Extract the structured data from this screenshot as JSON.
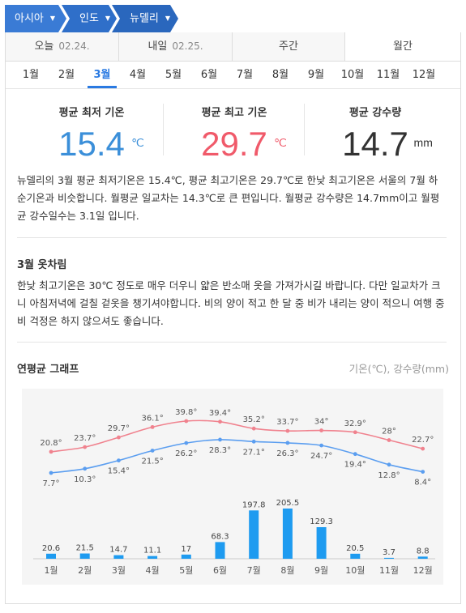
{
  "breadcrumb": {
    "items": [
      {
        "label": "아시아",
        "color": "#3a7bd5"
      },
      {
        "label": "인도",
        "color": "#2f6fc9"
      },
      {
        "label": "뉴델리",
        "color": "#2a67bd"
      }
    ]
  },
  "tabs": [
    {
      "label": "오늘",
      "date": "02.24."
    },
    {
      "label": "내일",
      "date": "02.25."
    },
    {
      "label": "주간",
      "date": ""
    },
    {
      "label": "월간",
      "date": ""
    }
  ],
  "months": [
    "1월",
    "2월",
    "3월",
    "4월",
    "5월",
    "6월",
    "7월",
    "8월",
    "9월",
    "10월",
    "11월",
    "12월"
  ],
  "selected_month": "3월",
  "stats": {
    "min": {
      "title": "평균 최저 기온",
      "value": "15.4",
      "unit": "℃",
      "color": "#3b8fd9"
    },
    "max": {
      "title": "평균 최고 기온",
      "value": "29.7",
      "unit": "℃",
      "color": "#f05a6a"
    },
    "rain": {
      "title": "평균 강수량",
      "value": "14.7",
      "unit": "mm",
      "color": "#333333"
    }
  },
  "summary": "뉴델리의 3월 평균 최저기온은 15.4℃, 평균 최고기온은 29.7℃로 한낮 최고기온은 서울의 7월 하순기온과 비슷합니다. 월평균 일교차는 14.3℃로 큰 편입니다. 월평균 강수량은 14.7mm이고 월평균 강수일수는 3.1일 입니다.",
  "clothing": {
    "title": "3월 옷차림",
    "text": "한낮 최고기온은 30℃ 정도로 매우 더우니 얇은 반소매 옷을 가져가시길 바랍니다. 다만 일교차가 크니 아침저녁에 걸칠 겉옷을 챙기셔야합니다. 비의 양이 적고 한 달 중 비가 내리는 양이 적으니 여행 중 비 걱정은 하지 않으셔도 좋습니다."
  },
  "graph": {
    "title": "연평균 그래프",
    "legend": "기온(℃), 강수량(mm)"
  },
  "chart_data": {
    "type": "line+bar",
    "categories": [
      "1월",
      "2월",
      "3월",
      "4월",
      "5월",
      "6월",
      "7월",
      "8월",
      "9월",
      "10월",
      "11월",
      "12월"
    ],
    "series": [
      {
        "name": "최고 기온",
        "values": [
          20.8,
          23.7,
          29.7,
          36.1,
          39.8,
          39.4,
          35.2,
          33.7,
          34,
          32.9,
          28,
          22.7
        ],
        "color": "#f0828e",
        "labels": [
          "20.8°",
          "23.7°",
          "29.7°",
          "36.1°",
          "39.8°",
          "39.4°",
          "35.2°",
          "33.7°",
          "34°",
          "32.9°",
          "28°",
          "22.7°"
        ]
      },
      {
        "name": "최저 기온",
        "values": [
          7.7,
          10.3,
          15.4,
          21.5,
          26.2,
          28.3,
          27.1,
          26.3,
          24.7,
          19.4,
          12.8,
          8.4
        ],
        "color": "#5b9ef0",
        "labels": [
          "7.7°",
          "10.3°",
          "15.4°",
          "21.5°",
          "26.2°",
          "28.3°",
          "27.1°",
          "26.3°",
          "24.7°",
          "19.4°",
          "12.8°",
          "8.4°"
        ]
      },
      {
        "name": "강수량",
        "values": [
          20.6,
          21.5,
          14.7,
          11.1,
          17,
          68.3,
          197.8,
          205.5,
          129.3,
          20.5,
          3.7,
          8.8
        ],
        "color": "#1e9bf0",
        "labels": [
          "20.6",
          "21.5",
          "14.7",
          "11.1",
          "17",
          "68.3",
          "197.8",
          "205.5",
          "129.3",
          "20.5",
          "3.7",
          "8.8"
        ]
      }
    ]
  }
}
